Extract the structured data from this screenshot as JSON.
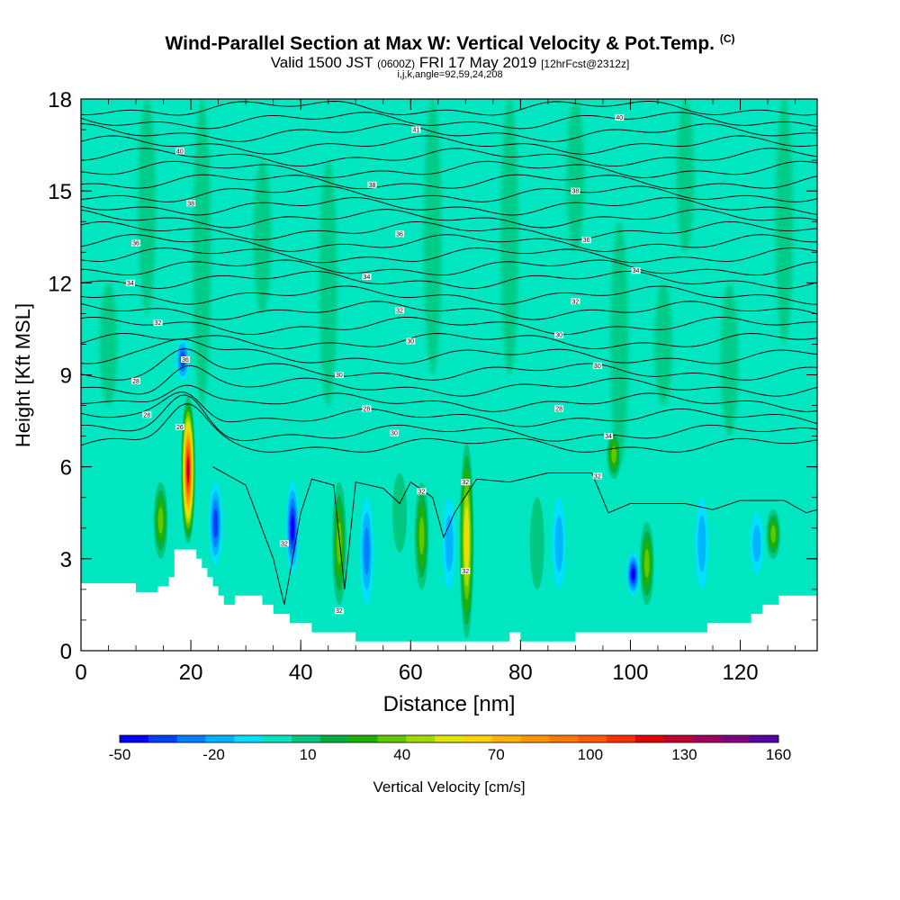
{
  "header": {
    "title": "Wind-Parallel Section at Max W: Vertical Velocity & Pot.Temp.",
    "copyright_mark": "(C)",
    "valid_prefix": "Valid 1500 JST",
    "valid_utc": "(0600Z)",
    "valid_date": "FRI 17 May 2019",
    "forecast": "[12hrFcst@2312z]",
    "indices": "i,j,k,angle=92,59,24,208"
  },
  "chart_data": {
    "type": "heatmap",
    "xlabel": "Distance [nm]",
    "ylabel": "Height [Kft MSL]",
    "xlim": [
      0,
      134
    ],
    "ylim": [
      0,
      18
    ],
    "x_ticks": [
      "0",
      "20",
      "40",
      "60",
      "80",
      "100",
      "120"
    ],
    "y_ticks": [
      "0",
      "3",
      "6",
      "9",
      "12",
      "15",
      "18"
    ],
    "background_color": "#00e6c0",
    "colorbar": {
      "label": "Vertical Velocity [cm/s]",
      "tick_labels": [
        "-50",
        "-20",
        "10",
        "40",
        "70",
        "100",
        "130",
        "160"
      ],
      "min": -50,
      "max": 160,
      "colors": [
        "#0000ff",
        "#0040ff",
        "#0080ff",
        "#00b4ff",
        "#00e0ff",
        "#00e6c0",
        "#00c880",
        "#00b040",
        "#20b000",
        "#60c800",
        "#a0dc00",
        "#e0e600",
        "#ffd200",
        "#ffb400",
        "#ff9600",
        "#ff7800",
        "#ff5a00",
        "#ff3000",
        "#e60000",
        "#c00030",
        "#a00060",
        "#800080",
        "#5a00a0"
      ]
    },
    "terrain": [
      [
        0,
        2.2
      ],
      [
        10,
        2.2
      ],
      [
        10,
        1.9
      ],
      [
        14,
        1.9
      ],
      [
        14,
        2.1
      ],
      [
        16,
        2.1
      ],
      [
        16,
        2.4
      ],
      [
        17,
        2.4
      ],
      [
        17,
        3.3
      ],
      [
        21,
        3.3
      ],
      [
        21,
        3.0
      ],
      [
        22,
        3.0
      ],
      [
        22,
        2.7
      ],
      [
        23,
        2.7
      ],
      [
        23,
        2.4
      ],
      [
        24,
        2.4
      ],
      [
        24,
        2.1
      ],
      [
        25,
        2.1
      ],
      [
        25,
        1.8
      ],
      [
        26,
        1.8
      ],
      [
        26,
        1.5
      ],
      [
        28,
        1.5
      ],
      [
        28,
        1.8
      ],
      [
        33,
        1.8
      ],
      [
        33,
        1.5
      ],
      [
        35,
        1.5
      ],
      [
        35,
        1.2
      ],
      [
        38,
        1.2
      ],
      [
        38,
        0.9
      ],
      [
        42,
        0.9
      ],
      [
        42,
        0.6
      ],
      [
        50,
        0.6
      ],
      [
        50,
        0.3
      ],
      [
        78,
        0.3
      ],
      [
        78,
        0.6
      ],
      [
        80,
        0.6
      ],
      [
        80,
        0.3
      ],
      [
        90,
        0.3
      ],
      [
        90,
        0.6
      ],
      [
        114,
        0.6
      ],
      [
        114,
        0.9
      ],
      [
        122,
        0.9
      ],
      [
        122,
        1.2
      ],
      [
        124,
        1.2
      ],
      [
        124,
        1.5
      ],
      [
        127,
        1.5
      ],
      [
        127,
        1.8
      ],
      [
        134,
        1.8
      ]
    ],
    "updrafts": [
      {
        "x": 19.5,
        "y_bottom": 3.5,
        "y_top": 8.3,
        "value": 130
      },
      {
        "x": 70.2,
        "y_bottom": 0.4,
        "y_top": 6.8,
        "value": 70
      },
      {
        "x": 62,
        "y_bottom": 2.0,
        "y_top": 5.5,
        "value": 40
      },
      {
        "x": 47,
        "y_bottom": 1.5,
        "y_top": 5.5,
        "value": 40
      },
      {
        "x": 103,
        "y_bottom": 1.5,
        "y_top": 4.2,
        "value": 40
      },
      {
        "x": 97,
        "y_bottom": 5.6,
        "y_top": 7.2,
        "value": 40
      },
      {
        "x": 14.5,
        "y_bottom": 3.0,
        "y_top": 5.5,
        "value": 40
      },
      {
        "x": 126,
        "y_bottom": 3.0,
        "y_top": 4.6,
        "value": 40
      },
      {
        "x": 58,
        "y_bottom": 3.2,
        "y_top": 5.8,
        "value": 10
      },
      {
        "x": 83,
        "y_bottom": 2.0,
        "y_top": 5.0,
        "value": 10
      }
    ],
    "downdrafts": [
      {
        "x": 38.5,
        "y_bottom": 2.5,
        "y_top": 5.5,
        "value": -50
      },
      {
        "x": 24.5,
        "y_bottom": 2.8,
        "y_top": 5.5,
        "value": -40
      },
      {
        "x": 52,
        "y_bottom": 1.5,
        "y_top": 5.0,
        "value": -30
      },
      {
        "x": 100.5,
        "y_bottom": 1.8,
        "y_top": 3.2,
        "value": -50
      },
      {
        "x": 87,
        "y_bottom": 2.0,
        "y_top": 5.0,
        "value": -20
      },
      {
        "x": 67,
        "y_bottom": 2.0,
        "y_top": 5.0,
        "value": -20
      },
      {
        "x": 113,
        "y_bottom": 2.0,
        "y_top": 5.0,
        "value": -20
      },
      {
        "x": 18.5,
        "y_bottom": 8.8,
        "y_top": 10.2,
        "value": -40
      },
      {
        "x": 123,
        "y_bottom": 2.5,
        "y_top": 4.5,
        "value": -20
      }
    ],
    "upper_bands": [
      {
        "x": 22,
        "y_bottom": 8,
        "y_top": 18,
        "value": 10
      },
      {
        "x": 45,
        "y_bottom": 8,
        "y_top": 16,
        "value": 10
      },
      {
        "x": 64,
        "y_bottom": 9,
        "y_top": 18,
        "value": 10
      },
      {
        "x": 78,
        "y_bottom": 9,
        "y_top": 18,
        "value": 10
      },
      {
        "x": 98,
        "y_bottom": 6,
        "y_top": 14,
        "value": 10
      },
      {
        "x": 106,
        "y_bottom": 8,
        "y_top": 12,
        "value": 10
      },
      {
        "x": 118,
        "y_bottom": 7,
        "y_top": 12,
        "value": 10
      },
      {
        "x": 128,
        "y_bottom": 10,
        "y_top": 18,
        "value": 10
      },
      {
        "x": 5,
        "y_bottom": 8,
        "y_top": 12,
        "value": 10
      },
      {
        "x": 12,
        "y_bottom": 11,
        "y_top": 18,
        "value": 10
      },
      {
        "x": 33,
        "y_bottom": 11,
        "y_top": 16,
        "value": 10
      },
      {
        "x": 90,
        "y_bottom": 13,
        "y_top": 18,
        "value": 10
      },
      {
        "x": 110,
        "y_bottom": 13,
        "y_top": 18,
        "value": 10
      }
    ],
    "theta_levels": [
      6.7,
      7.1,
      7.6,
      8.1,
      8.6,
      9.1,
      9.6,
      10.1,
      10.6,
      11.1,
      11.6,
      12.1,
      12.5,
      12.9,
      13.3,
      13.7,
      14.1,
      14.5,
      14.9,
      15.3,
      15.7,
      16.1,
      16.5,
      16.9,
      17.3,
      17.7
    ],
    "contour_labels": [
      {
        "x": 19,
        "y": 9.5,
        "text": "36"
      },
      {
        "x": 9,
        "y": 12.0,
        "text": "34"
      },
      {
        "x": 10,
        "y": 13.3,
        "text": "36"
      },
      {
        "x": 20,
        "y": 14.6,
        "text": "38"
      },
      {
        "x": 18,
        "y": 16.3,
        "text": "40"
      },
      {
        "x": 61,
        "y": 17.0,
        "text": "41"
      },
      {
        "x": 53,
        "y": 15.2,
        "text": "38"
      },
      {
        "x": 58,
        "y": 13.6,
        "text": "36"
      },
      {
        "x": 52,
        "y": 12.2,
        "text": "34"
      },
      {
        "x": 58,
        "y": 11.1,
        "text": "32"
      },
      {
        "x": 60,
        "y": 10.1,
        "text": "30"
      },
      {
        "x": 47,
        "y": 9.0,
        "text": "30"
      },
      {
        "x": 52,
        "y": 7.9,
        "text": "28"
      },
      {
        "x": 57,
        "y": 7.1,
        "text": "30"
      },
      {
        "x": 14,
        "y": 10.7,
        "text": "32"
      },
      {
        "x": 10,
        "y": 8.8,
        "text": "28"
      },
      {
        "x": 12,
        "y": 7.7,
        "text": "28"
      },
      {
        "x": 18,
        "y": 7.3,
        "text": "26"
      },
      {
        "x": 98,
        "y": 17.4,
        "text": "40"
      },
      {
        "x": 90,
        "y": 15.0,
        "text": "38"
      },
      {
        "x": 92,
        "y": 13.4,
        "text": "36"
      },
      {
        "x": 101,
        "y": 12.4,
        "text": "34"
      },
      {
        "x": 90,
        "y": 11.4,
        "text": "32"
      },
      {
        "x": 87,
        "y": 10.3,
        "text": "30"
      },
      {
        "x": 94,
        "y": 9.3,
        "text": "30"
      },
      {
        "x": 87,
        "y": 7.9,
        "text": "28"
      },
      {
        "x": 96,
        "y": 7.0,
        "text": "34"
      },
      {
        "x": 94,
        "y": 5.7,
        "text": "32"
      },
      {
        "x": 62,
        "y": 5.2,
        "text": "32"
      },
      {
        "x": 70,
        "y": 5.5,
        "text": "32"
      },
      {
        "x": 70,
        "y": 2.6,
        "text": "32"
      },
      {
        "x": 37,
        "y": 3.5,
        "text": "32"
      },
      {
        "x": 47,
        "y": 1.3,
        "text": "32"
      }
    ]
  }
}
